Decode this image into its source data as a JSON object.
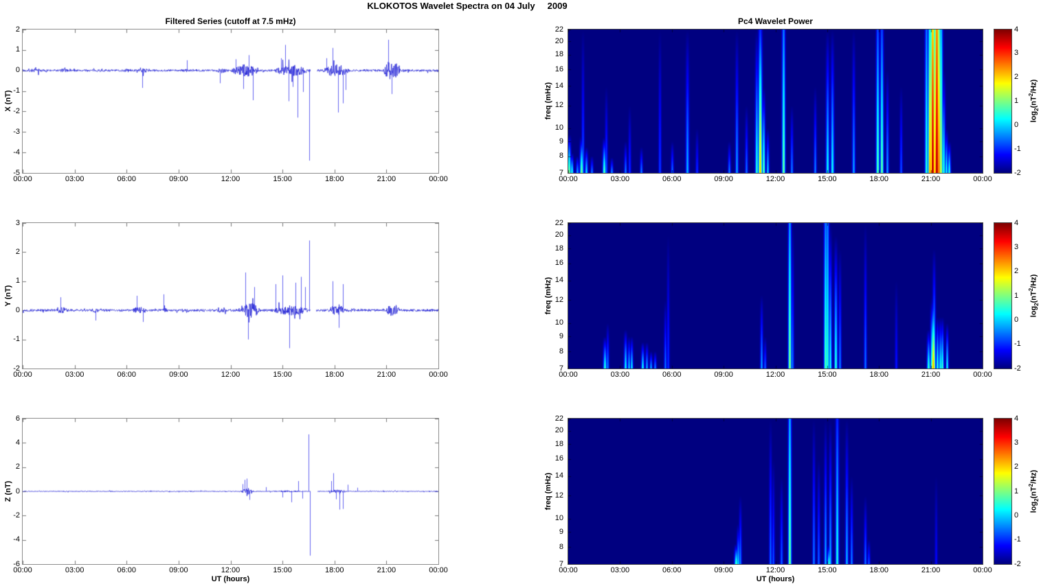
{
  "figure": {
    "title": "KLOKOTOS Wavelet Spectra on 04 July     2009"
  },
  "colorbar": {
    "label_prefix": "log",
    "label_sub": "2",
    "label_mid": "(nT",
    "label_sup": "2",
    "label_suffix": "/Hz)",
    "ticks": [
      4,
      3,
      2,
      1,
      0,
      -1,
      -2
    ],
    "range": [
      -2,
      4
    ],
    "colormap": "jet"
  },
  "chart_data": [
    {
      "type": "line",
      "title": "Filtered Series (cutoff at 7.5 mHz)",
      "ylabel": "X (nT)",
      "xlabel": "",
      "ylim": [
        -5,
        2
      ],
      "y_ticks": [
        2,
        1,
        0,
        -1,
        -2,
        -3,
        -4,
        -5
      ],
      "x_ticks": [
        "00:00",
        "03:00",
        "06:00",
        "09:00",
        "12:00",
        "15:00",
        "18:00",
        "21:00",
        "00:00"
      ],
      "xlim_hours": [
        0,
        24
      ],
      "line_color": "#1f1fd4",
      "noise_base": 0.05,
      "burst_format": "[startHour, endHour, amplitude_nT]",
      "bursts": [
        [
          0.2,
          1.3,
          0.1
        ],
        [
          2.0,
          2.7,
          0.09
        ],
        [
          4.2,
          4.6,
          0.07
        ],
        [
          5.7,
          6.4,
          0.09
        ],
        [
          6.6,
          7.3,
          0.11
        ],
        [
          9.1,
          9.7,
          0.08
        ],
        [
          11.1,
          12.0,
          0.13
        ],
        [
          12.0,
          13.7,
          0.3
        ],
        [
          14.4,
          16.6,
          0.28
        ],
        [
          17.3,
          18.9,
          0.3
        ],
        [
          19.3,
          20.2,
          0.07
        ],
        [
          20.8,
          21.8,
          0.5
        ]
      ],
      "spike_format": "[hourUT, peak_nT]",
      "spikes": [
        [
          6.9,
          -0.85
        ],
        [
          9.5,
          0.5
        ],
        [
          11.4,
          -0.62
        ],
        [
          12.3,
          0.55
        ],
        [
          12.75,
          -0.9
        ],
        [
          13.05,
          0.75
        ],
        [
          13.3,
          -1.45
        ],
        [
          14.9,
          0.6
        ],
        [
          15.15,
          1.25
        ],
        [
          15.35,
          -1.5
        ],
        [
          15.6,
          -0.8
        ],
        [
          15.85,
          -2.3
        ],
        [
          16.2,
          -1.05
        ],
        [
          16.55,
          -4.4
        ],
        [
          17.55,
          0.6
        ],
        [
          17.9,
          1.1
        ],
        [
          18.2,
          -2.05
        ],
        [
          18.5,
          -1.6
        ],
        [
          18.65,
          -0.95
        ],
        [
          21.1,
          1.5
        ],
        [
          21.3,
          -1.15
        ]
      ],
      "gaps": [
        [
          16.62,
          16.98
        ]
      ]
    },
    {
      "type": "line",
      "title": "",
      "ylabel": "Y (nT)",
      "xlabel": "",
      "ylim": [
        -2,
        3
      ],
      "y_ticks": [
        3,
        2,
        1,
        0,
        -1,
        -2
      ],
      "x_ticks": [
        "00:00",
        "03:00",
        "06:00",
        "09:00",
        "12:00",
        "15:00",
        "18:00",
        "21:00",
        "00:00"
      ],
      "xlim_hours": [
        0,
        24
      ],
      "line_color": "#1f1fd4",
      "noise_base": 0.04,
      "bursts": [
        [
          1.9,
          2.7,
          0.11
        ],
        [
          3.9,
          4.6,
          0.09
        ],
        [
          6.3,
          7.2,
          0.13
        ],
        [
          8.0,
          8.4,
          0.09
        ],
        [
          11.2,
          11.8,
          0.09
        ],
        [
          12.6,
          13.7,
          0.27
        ],
        [
          14.3,
          16.6,
          0.17
        ],
        [
          17.6,
          18.7,
          0.18
        ],
        [
          20.9,
          21.8,
          0.22
        ]
      ],
      "spikes": [
        [
          2.2,
          0.45
        ],
        [
          4.2,
          -0.35
        ],
        [
          6.6,
          0.5
        ],
        [
          6.95,
          -0.4
        ],
        [
          8.15,
          0.55
        ],
        [
          12.85,
          1.3
        ],
        [
          13.0,
          -1.0
        ],
        [
          13.35,
          0.8
        ],
        [
          14.6,
          0.9
        ],
        [
          15.0,
          1.2
        ],
        [
          15.4,
          -1.3
        ],
        [
          15.75,
          0.95
        ],
        [
          16.05,
          1.15
        ],
        [
          16.3,
          0.8
        ],
        [
          16.55,
          2.4
        ],
        [
          17.9,
          1.0
        ],
        [
          18.25,
          -0.6
        ],
        [
          18.5,
          0.9
        ]
      ],
      "gaps": [
        [
          16.62,
          16.95
        ]
      ]
    },
    {
      "type": "line",
      "title": "",
      "ylabel": "Z (nT)",
      "xlabel": "UT (hours)",
      "ylim": [
        -6,
        6
      ],
      "y_ticks": [
        6,
        4,
        2,
        0,
        -2,
        -4,
        -6
      ],
      "x_ticks": [
        "00:00",
        "03:00",
        "06:00",
        "09:00",
        "12:00",
        "15:00",
        "18:00",
        "21:00",
        "00:00"
      ],
      "xlim_hours": [
        0,
        24
      ],
      "line_color": "#1f1fd4",
      "noise_base": 0.03,
      "bursts": [
        [
          0.8,
          1.15,
          0.05
        ],
        [
          2.3,
          2.65,
          0.05
        ],
        [
          4.9,
          5.25,
          0.05
        ],
        [
          6.9,
          7.3,
          0.05
        ],
        [
          9.6,
          10.05,
          0.06
        ],
        [
          12.6,
          13.35,
          0.28
        ],
        [
          14.0,
          16.5,
          0.07
        ],
        [
          17.5,
          18.8,
          0.13
        ],
        [
          21.3,
          21.7,
          0.06
        ]
      ],
      "spikes": [
        [
          12.7,
          0.6
        ],
        [
          12.8,
          0.95
        ],
        [
          12.95,
          1.05
        ],
        [
          13.1,
          -0.7
        ],
        [
          14.05,
          0.35
        ],
        [
          15.0,
          -0.5
        ],
        [
          15.5,
          -0.9
        ],
        [
          15.9,
          0.85
        ],
        [
          16.15,
          -0.6
        ],
        [
          16.5,
          4.7
        ],
        [
          16.57,
          -5.3
        ],
        [
          17.8,
          0.85
        ],
        [
          17.95,
          1.5
        ],
        [
          18.1,
          -0.65
        ],
        [
          18.3,
          -1.5
        ],
        [
          18.5,
          -1.45
        ],
        [
          18.75,
          0.55
        ],
        [
          19.3,
          0.3
        ]
      ],
      "gaps": [
        [
          16.62,
          17.0
        ]
      ]
    },
    {
      "type": "heatmap",
      "title": "Pc4 Wavelet Power",
      "ylabel": "freq (mHz)",
      "xlabel": "",
      "ylim_mhz": [
        7,
        22
      ],
      "yscale": "log",
      "y_ticks": [
        22,
        20,
        18,
        16,
        14,
        12,
        10,
        9,
        8,
        7
      ],
      "x_ticks": [
        "00:00",
        "03:00",
        "06:00",
        "09:00",
        "12:00",
        "15:00",
        "18:00",
        "21:00",
        "00:00"
      ],
      "level_range": [
        -2,
        4
      ],
      "background_level": -2,
      "streak_format": "[hourUT, base_level_log2, top_freq_mHz, width_px, top_level_log2_optional]",
      "streaks": [
        [
          0.05,
          1.2,
          9.5,
          2.2
        ],
        [
          0.18,
          0.6,
          8.2,
          2
        ],
        [
          0.5,
          -0.2,
          8.0,
          2
        ],
        [
          0.75,
          1.1,
          9.4,
          2.4
        ],
        [
          0.82,
          -0.6,
          22,
          1.8
        ],
        [
          1.05,
          0.2,
          8.6,
          2
        ],
        [
          1.35,
          -0.4,
          8.0,
          1.8
        ],
        [
          2.05,
          0.9,
          9.3,
          2.2
        ],
        [
          2.2,
          -0.7,
          14,
          1.8
        ],
        [
          2.5,
          -0.3,
          7.9,
          1.8
        ],
        [
          3.3,
          -0.4,
          9.0,
          1.8
        ],
        [
          3.55,
          -0.9,
          12,
          1.8
        ],
        [
          4.2,
          -0.4,
          8.6,
          1.8
        ],
        [
          5.3,
          -0.8,
          22,
          1.8
        ],
        [
          6.0,
          -0.5,
          9.0,
          1.8
        ],
        [
          6.9,
          -0.1,
          22,
          2.2
        ],
        [
          7.45,
          -0.9,
          10,
          1.8
        ],
        [
          9.3,
          -0.4,
          9.0,
          1.8
        ],
        [
          9.75,
          -0.2,
          22,
          2
        ],
        [
          10.3,
          -0.5,
          12,
          1.8
        ],
        [
          10.9,
          0.6,
          22,
          2.2
        ],
        [
          11.1,
          2.2,
          22,
          2.6,
          -1
        ],
        [
          11.3,
          1.0,
          14,
          2
        ],
        [
          11.55,
          0.1,
          10,
          1.8
        ],
        [
          12.45,
          1.0,
          22,
          2.2,
          -0.5
        ],
        [
          12.95,
          -0.4,
          12,
          1.8
        ],
        [
          14.3,
          -0.4,
          14,
          1.8
        ],
        [
          15.0,
          0.4,
          22,
          2.2
        ],
        [
          15.3,
          0.4,
          22,
          2.2
        ],
        [
          16.5,
          -0.2,
          22,
          2
        ],
        [
          17.9,
          0.9,
          22,
          2.2,
          -0.8
        ],
        [
          18.15,
          1.0,
          22,
          2.2,
          -0.8
        ],
        [
          18.45,
          -0.2,
          16,
          1.8
        ],
        [
          19.25,
          -0.7,
          14,
          1.8
        ],
        [
          20.75,
          0.6,
          22,
          2.2,
          -0.5
        ],
        [
          20.95,
          2.6,
          22,
          2.6,
          0.5
        ],
        [
          21.1,
          3.9,
          22,
          3,
          2.2
        ],
        [
          21.22,
          2.2,
          22,
          2.4,
          0.5
        ],
        [
          21.32,
          3.9,
          22,
          3.4,
          2.6
        ],
        [
          21.45,
          2.9,
          22,
          2.6,
          1
        ],
        [
          21.58,
          1.6,
          22,
          2.4,
          0
        ],
        [
          21.72,
          0.6,
          16,
          2.2
        ],
        [
          21.88,
          0.4,
          10,
          2
        ],
        [
          22.05,
          0.6,
          9,
          2
        ]
      ]
    },
    {
      "type": "heatmap",
      "title": "",
      "ylabel": "freq (mHz)",
      "xlabel": "",
      "ylim_mhz": [
        7,
        22
      ],
      "yscale": "log",
      "y_ticks": [
        22,
        20,
        18,
        16,
        14,
        12,
        10,
        9,
        8,
        7
      ],
      "x_ticks": [
        "00:00",
        "03:00",
        "06:00",
        "09:00",
        "12:00",
        "15:00",
        "18:00",
        "21:00",
        "00:00"
      ],
      "level_range": [
        -2,
        4
      ],
      "background_level": -2,
      "streaks": [
        [
          2.1,
          0.6,
          9.0,
          2.2
        ],
        [
          2.25,
          -0.4,
          10,
          1.8
        ],
        [
          3.3,
          0.4,
          9.5,
          2
        ],
        [
          3.5,
          0.1,
          9.0,
          1.8
        ],
        [
          3.65,
          0.3,
          9.0,
          1.8
        ],
        [
          4.3,
          0.4,
          8.6,
          2
        ],
        [
          4.55,
          -0.1,
          8.6,
          1.8
        ],
        [
          4.78,
          -0.1,
          8.0,
          1.8
        ],
        [
          5.0,
          -0.4,
          8.0,
          1.8
        ],
        [
          5.6,
          -0.5,
          12,
          1.8
        ],
        [
          5.78,
          -0.9,
          20,
          1.8
        ],
        [
          11.2,
          -0.2,
          12.5,
          1.8
        ],
        [
          11.4,
          -0.6,
          9,
          1.8
        ],
        [
          12.8,
          1.2,
          22,
          2.2,
          -0.3
        ],
        [
          12.98,
          -0.5,
          22,
          1.8
        ],
        [
          14.88,
          0.9,
          22,
          2.2,
          -0.5
        ],
        [
          15.02,
          0.7,
          22,
          2.2,
          -0.5
        ],
        [
          15.18,
          0.4,
          22,
          2
        ],
        [
          15.5,
          0.6,
          20,
          2.2
        ],
        [
          15.72,
          -0.4,
          18,
          1.8
        ],
        [
          17.2,
          -0.5,
          22,
          1.8
        ],
        [
          19.0,
          -1.1,
          14,
          1.8
        ],
        [
          20.85,
          0.7,
          9.5,
          2.2
        ],
        [
          21.05,
          1.1,
          12,
          2.2
        ],
        [
          21.15,
          2.4,
          12.5,
          2.6
        ],
        [
          21.17,
          0.3,
          18,
          2
        ],
        [
          21.38,
          0.6,
          10.5,
          2
        ],
        [
          21.52,
          0.5,
          10.5,
          2
        ],
        [
          21.66,
          0.7,
          10.5,
          2
        ],
        [
          21.92,
          0.4,
          10,
          1.8
        ]
      ]
    },
    {
      "type": "heatmap",
      "title": "",
      "ylabel": "freq (mHz)",
      "xlabel": "UT (hours)",
      "ylim_mhz": [
        7,
        22
      ],
      "yscale": "log",
      "y_ticks": [
        22,
        20,
        18,
        16,
        14,
        12,
        10,
        9,
        8,
        7
      ],
      "x_ticks": [
        "00:00",
        "03:00",
        "06:00",
        "09:00",
        "12:00",
        "15:00",
        "18:00",
        "21:00",
        "00:00"
      ],
      "level_range": [
        -2,
        4
      ],
      "background_level": -2,
      "streaks": [
        [
          9.7,
          0.7,
          8.2,
          2.4
        ],
        [
          9.82,
          0.1,
          9.6,
          2
        ],
        [
          9.97,
          -0.4,
          12,
          1.8
        ],
        [
          11.7,
          -0.5,
          22,
          1.8
        ],
        [
          11.88,
          -0.7,
          16,
          1.8
        ],
        [
          12.32,
          -0.6,
          14,
          1.8
        ],
        [
          12.8,
          1.1,
          22,
          2.2,
          -0.2
        ],
        [
          14.2,
          -0.4,
          22,
          1.8
        ],
        [
          14.5,
          -0.6,
          16,
          1.8
        ],
        [
          14.9,
          -0.1,
          22,
          1.8
        ],
        [
          15.1,
          0.6,
          8.2,
          2.2
        ],
        [
          15.18,
          -0.1,
          22,
          1.8
        ],
        [
          15.55,
          0.5,
          22,
          2.2,
          -1
        ],
        [
          16.1,
          -0.1,
          22,
          2
        ],
        [
          16.38,
          -0.4,
          14,
          1.8
        ],
        [
          17.2,
          -0.5,
          12,
          1.8
        ],
        [
          17.38,
          -0.7,
          8.5,
          1.8
        ],
        [
          21.3,
          -1.2,
          14,
          1.8
        ]
      ]
    }
  ]
}
